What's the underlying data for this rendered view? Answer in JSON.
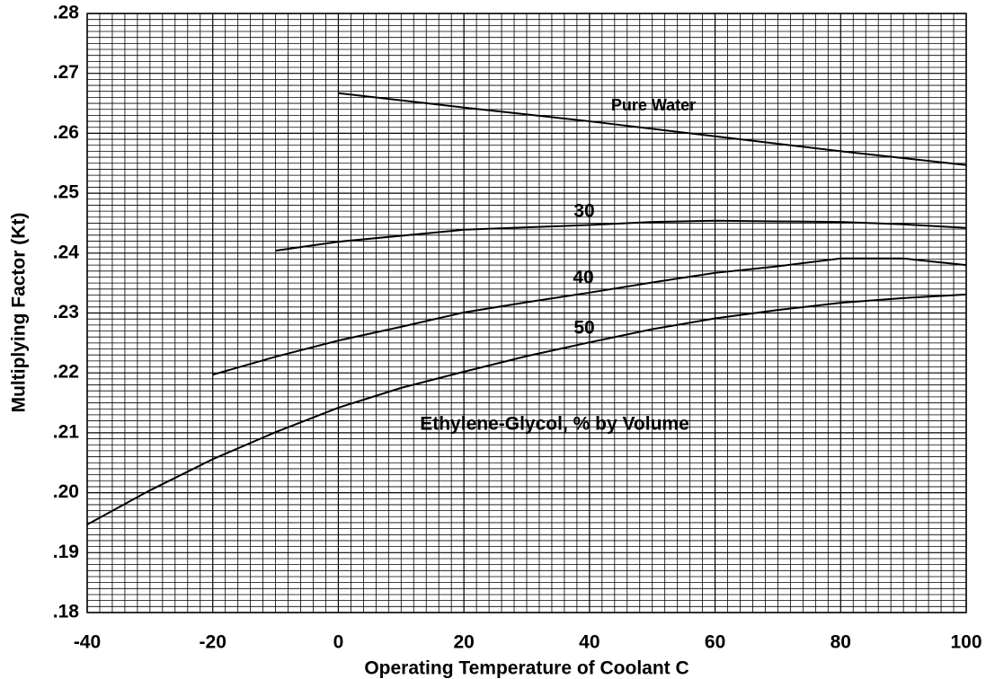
{
  "chart_data": {
    "type": "line",
    "xlabel": "Operating Temperature of Coolant C",
    "ylabel": "Multiplying Factor (Kt)",
    "annotation": "Ethylene-Glycol, % by Volume",
    "xlim": [
      -40,
      100
    ],
    "xticks": [
      -40,
      -20,
      0,
      20,
      40,
      60,
      80,
      100
    ],
    "ylim": [
      0.18,
      0.28
    ],
    "yticks": [
      {
        "value": 0.18,
        "label": ".18"
      },
      {
        "value": 0.19,
        "label": ".19"
      },
      {
        "value": 0.2,
        "label": ".20"
      },
      {
        "value": 0.21,
        "label": ".21"
      },
      {
        "value": 0.22,
        "label": ".22"
      },
      {
        "value": 0.23,
        "label": ".23"
      },
      {
        "value": 0.24,
        "label": ".24"
      },
      {
        "value": 0.25,
        "label": ".25"
      },
      {
        "value": 0.26,
        "label": ".26"
      },
      {
        "value": 0.27,
        "label": ".27"
      },
      {
        "value": 0.28,
        "label": ".28"
      }
    ],
    "grid": true,
    "series": [
      {
        "name": "Pure Water",
        "color": "#000000",
        "x": [
          0,
          20,
          40,
          60,
          80,
          100
        ],
        "y": [
          0.2667,
          0.2643,
          0.262,
          0.2595,
          0.257,
          0.2547
        ]
      },
      {
        "name": "30",
        "color": "#000000",
        "x": [
          -10,
          0,
          10,
          20,
          30,
          40,
          50,
          60,
          70,
          80,
          90,
          100
        ],
        "y": [
          0.2404,
          0.2419,
          0.2429,
          0.2439,
          0.2443,
          0.2447,
          0.2452,
          0.2454,
          0.2453,
          0.2452,
          0.2448,
          0.2442
        ]
      },
      {
        "name": "40",
        "color": "#000000",
        "x": [
          -20,
          -10,
          0,
          10,
          20,
          30,
          40,
          50,
          60,
          70,
          80,
          90,
          100
        ],
        "y": [
          0.2197,
          0.2227,
          0.2254,
          0.2277,
          0.2301,
          0.2318,
          0.2334,
          0.2351,
          0.2367,
          0.2378,
          0.2391,
          0.2391,
          0.238
        ]
      },
      {
        "name": "50",
        "color": "#000000",
        "x": [
          -40,
          -30,
          -20,
          -10,
          0,
          10,
          20,
          30,
          40,
          50,
          60,
          70,
          80,
          90,
          100
        ],
        "y": [
          0.1947,
          0.2004,
          0.2056,
          0.2101,
          0.2142,
          0.2175,
          0.2202,
          0.2228,
          0.2251,
          0.2273,
          0.2291,
          0.2305,
          0.2317,
          0.2325,
          0.2331
        ]
      }
    ]
  }
}
